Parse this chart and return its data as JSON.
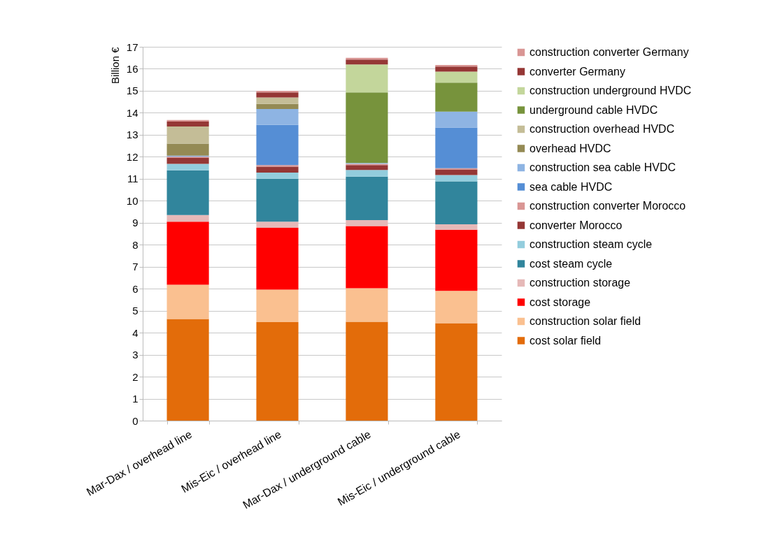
{
  "chart_data": {
    "type": "bar",
    "stacked": true,
    "ylabel": "Billion €",
    "categories": [
      "Mar-Dax / overhead line",
      "Mis-Eic / overhead line",
      "Mar-Dax / underground cable",
      "Mis-Eic / underground cable"
    ],
    "series": [
      {
        "name": "cost solar field",
        "color": "#e36c0a",
        "values": [
          4.62,
          4.48,
          4.5,
          4.43
        ]
      },
      {
        "name": "construction solar field",
        "color": "#fac090",
        "values": [
          1.56,
          1.48,
          1.52,
          1.47
        ]
      },
      {
        "name": "cost storage",
        "color": "#ff0000",
        "values": [
          2.87,
          2.81,
          2.83,
          2.78
        ]
      },
      {
        "name": "construction storage",
        "color": "#e6b9b8",
        "values": [
          0.3,
          0.28,
          0.27,
          0.25
        ]
      },
      {
        "name": "cost steam cycle",
        "color": "#31859c",
        "values": [
          2.03,
          1.95,
          1.98,
          1.95
        ]
      },
      {
        "name": "construction steam cycle",
        "color": "#93cddd",
        "values": [
          0.3,
          0.28,
          0.3,
          0.29
        ]
      },
      {
        "name": "converter Morocco",
        "color": "#953735",
        "values": [
          0.27,
          0.27,
          0.22,
          0.25
        ]
      },
      {
        "name": "construction converter Morocco",
        "color": "#d99694",
        "values": [
          0.05,
          0.07,
          0.06,
          0.06
        ]
      },
      {
        "name": "sea cable HVDC",
        "color": "#558ed5",
        "values": [
          0,
          1.83,
          0,
          1.85
        ]
      },
      {
        "name": "construction sea cable HVDC",
        "color": "#8eb4e3",
        "values": [
          0.05,
          0.72,
          0.04,
          0.72
        ]
      },
      {
        "name": "overhead HVDC",
        "color": "#948a54",
        "values": [
          0.55,
          0.23,
          0,
          0
        ]
      },
      {
        "name": "construction overhead HVDC",
        "color": "#c4bd97",
        "values": [
          0.78,
          0.3,
          0,
          0
        ]
      },
      {
        "name": "underground cable HVDC",
        "color": "#77933c",
        "values": [
          0,
          0,
          3.21,
          1.32
        ]
      },
      {
        "name": "construction underground HVDC",
        "color": "#c3d69b",
        "values": [
          0,
          0,
          1.27,
          0.5
        ]
      },
      {
        "name": "converter Germany",
        "color": "#953735",
        "values": [
          0.22,
          0.23,
          0.22,
          0.23
        ]
      },
      {
        "name": "construction converter Germany",
        "color": "#d99694",
        "values": [
          0.07,
          0.07,
          0.08,
          0.07
        ]
      }
    ],
    "ylim": [
      0,
      17
    ],
    "yticks": [
      0,
      1,
      2,
      3,
      4,
      5,
      6,
      7,
      8,
      9,
      10,
      11,
      12,
      13,
      14,
      15,
      16,
      17
    ],
    "grid": "y",
    "legend": "right"
  }
}
